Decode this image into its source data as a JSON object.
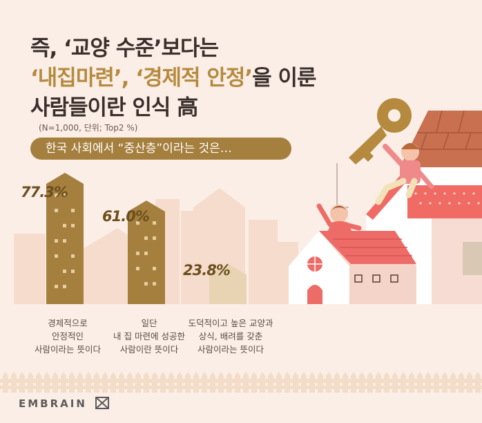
{
  "headline": {
    "line1": "즉, ‘교양 수준’보다는",
    "line2_highlight": "‘내집마련’, ‘경제적 안정’",
    "line2_rest": "을 이룬",
    "line3": "사람들이란 인식 高"
  },
  "note": "(N=1,000, 단위; Top2 %)",
  "question": "한국 사회에서 “중산층”이라는 것은…",
  "logo": "EMBRAIN",
  "colors": {
    "accent": "#b58a3e",
    "bar": "#a57f3e",
    "bar_light": "#e8d3b2",
    "background": "#fbeee6"
  },
  "chart_data": {
    "type": "bar",
    "unit": "%",
    "ylim": [
      0,
      100
    ],
    "categories": [
      "경제적으로 안정적인 사람이라는 뜻이다",
      "일단 내 집 마련에 성공한 사람이란 뜻이다",
      "도덕적이고 높은 교양과 상식, 배려를 갖춘 사람이라는 뜻이다"
    ],
    "category_lines": [
      [
        "경제적으로",
        "안정적인",
        "사람이라는 뜻이다"
      ],
      [
        "일단",
        "내 집 마련에 성공한",
        "사람이란 뜻이다"
      ],
      [
        "도덕적이고 높은 교양과",
        "상식, 배려를 갖춘",
        "사람이라는 뜻이다"
      ]
    ],
    "values": [
      77.3,
      61.0,
      23.8
    ],
    "value_labels": [
      "77.3%",
      "61.0%",
      "23.8%"
    ]
  }
}
